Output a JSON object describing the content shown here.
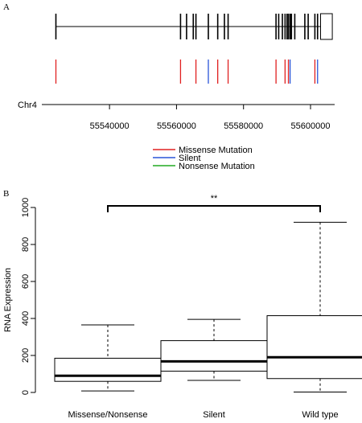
{
  "figure": {
    "panel_a_label": "A",
    "panel_b_label": "B"
  },
  "colors": {
    "missense": "#e02020",
    "silent": "#2a55d8",
    "nonsense": "#22aa22",
    "black": "#000000"
  },
  "chart_data": [
    {
      "type": "other",
      "panel": "A",
      "chromosome_label": "Chr4",
      "x_ticks": [
        55540000,
        55560000,
        55580000,
        55600000
      ],
      "xlim": [
        55519800,
        55607200
      ],
      "gene_start": 55524000,
      "gene_end": 55603000,
      "last_exon": [
        55603000,
        55606500
      ],
      "exons": [
        55524000,
        55561200,
        55563000,
        55565000,
        55565800,
        55569500,
        55572300,
        55574300,
        55575400,
        55589700,
        55590500,
        55591600,
        55592400,
        55593000,
        55593400,
        55593900,
        55594300,
        55595300,
        55598300,
        55599300,
        55601300,
        55602100
      ],
      "mutations": [
        {
          "position": 55524000,
          "type": "Missense Mutation"
        },
        {
          "position": 55561200,
          "type": "Missense Mutation"
        },
        {
          "position": 55565800,
          "type": "Missense Mutation"
        },
        {
          "position": 55569500,
          "type": "Silent"
        },
        {
          "position": 55572300,
          "type": "Missense Mutation"
        },
        {
          "position": 55575400,
          "type": "Missense Mutation"
        },
        {
          "position": 55589700,
          "type": "Missense Mutation"
        },
        {
          "position": 55592400,
          "type": "Missense Mutation"
        },
        {
          "position": 55593400,
          "type": "Missense Mutation"
        },
        {
          "position": 55593900,
          "type": "Silent"
        },
        {
          "position": 55601300,
          "type": "Missense Mutation"
        },
        {
          "position": 55602100,
          "type": "Silent"
        }
      ],
      "legend": [
        {
          "label": "Missense Mutation",
          "color": "#e02020"
        },
        {
          "label": "Silent",
          "color": "#2a55d8"
        },
        {
          "label": "Nonsense Mutation",
          "color": "#22aa22"
        }
      ]
    },
    {
      "type": "box",
      "panel": "B",
      "ylabel": "RNA Expression",
      "ylim": [
        0,
        1000
      ],
      "y_ticks": [
        0,
        200,
        400,
        600,
        800,
        1000
      ],
      "categories": [
        "Missense/Nonsense",
        "Silent",
        "Wild type"
      ],
      "boxes": [
        {
          "name": "Missense/Nonsense",
          "min": 8,
          "q1": 60,
          "median": 90,
          "q3": 185,
          "max": 365
        },
        {
          "name": "Silent",
          "min": 65,
          "q1": 115,
          "median": 168,
          "q3": 280,
          "max": 395
        },
        {
          "name": "Wild type",
          "min": 2,
          "q1": 75,
          "median": 190,
          "q3": 415,
          "max": 920
        }
      ],
      "significance": {
        "label": "**",
        "from": "Missense/Nonsense",
        "to": "Wild type"
      }
    }
  ]
}
